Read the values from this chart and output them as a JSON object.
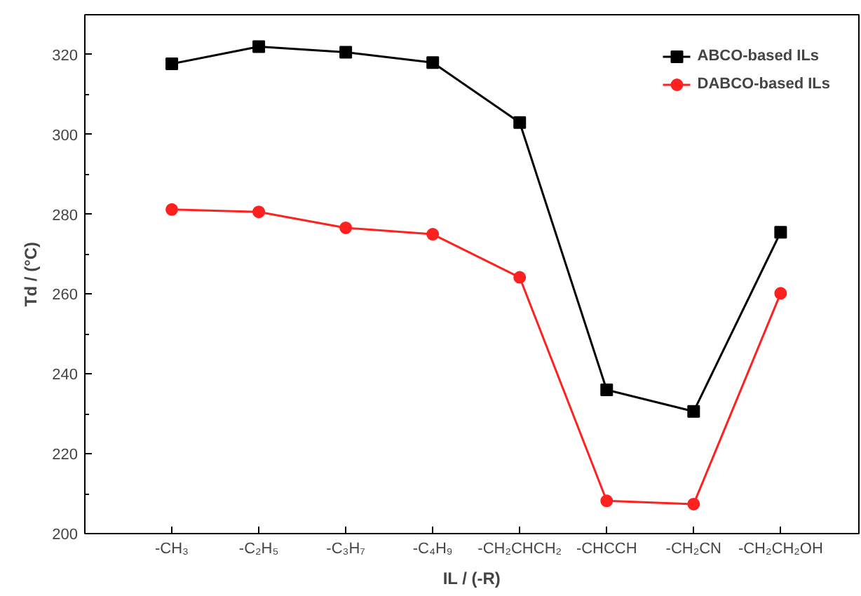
{
  "chart_data": {
    "type": "line",
    "xlabel": "IL / (-R)",
    "ylabel": "Td / (°C)",
    "categories": [
      "-CH₃",
      "-C₂H₅",
      "-C₃H₇",
      "-C₄H₉",
      "-CH₂CHCH₂",
      "-CHCCH",
      "-CH₂CN",
      "-CH₂CH₂OH"
    ],
    "series": [
      {
        "name": "ABCO-based ILs",
        "color": "#000000",
        "marker": "square",
        "values": [
          317.7,
          322,
          320.6,
          318,
          303,
          236,
          230.6,
          275.5
        ]
      },
      {
        "name": "DABCO-based ILs",
        "color": "#ff2020",
        "marker": "circle",
        "values": [
          281.2,
          280.6,
          276.6,
          275,
          264.2,
          208.2,
          207.4,
          260.2
        ]
      }
    ],
    "ylim": [
      200,
      330
    ],
    "yticks": [
      200,
      220,
      240,
      260,
      280,
      300,
      320
    ],
    "grid": false,
    "legend": "top right",
    "line_style": "solid"
  }
}
